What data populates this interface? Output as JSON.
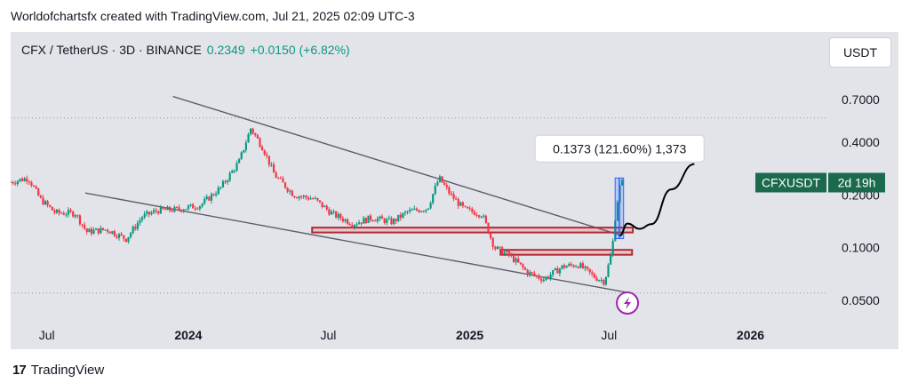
{
  "header": {
    "credit": "Worldofchartsfx created with TradingView.com, Jul 21, 2025 02:09 UTC-3"
  },
  "symbol": {
    "title": "CFX / TetherUS · 3D · BINANCE",
    "price": "0.2349",
    "change": "+0.0150 (+6.82%)"
  },
  "currency_button": "USDT",
  "ticker_tag": {
    "name": "CFXUSDT",
    "countdown": "2d 19h"
  },
  "measure_label": "0.1373 (121.60%) 1,373",
  "footer": {
    "brand": "TradingView"
  },
  "colors": {
    "up": "#089981",
    "down": "#f23645",
    "line": "#5d606b",
    "zone": "#b22833",
    "measure": "#2962ff",
    "panel": "#e3e4e9",
    "event": "#9c27b0"
  },
  "chart_data": {
    "type": "candlestick",
    "title": "CFX / TetherUS · 3D · BINANCE",
    "y_scale": "log",
    "y_ticks": [
      0.7,
      0.4,
      0.2,
      0.1,
      0.05
    ],
    "y_tick_labels": [
      "0.7000",
      "0.4000",
      "0.2000",
      "0.1000",
      "0.0500"
    ],
    "x_tick_labels": [
      "Jul",
      "2024",
      "Jul",
      "2025",
      "Jul",
      "2026"
    ],
    "x_tick_dates": [
      "2023-07-01",
      "2024-01-01",
      "2024-07-01",
      "2025-01-01",
      "2025-07-01",
      "2026-01-01"
    ],
    "x_range": [
      "2023-05-15",
      "2026-03-20"
    ],
    "y_range": [
      0.036,
      0.95
    ],
    "price_path": [
      [
        "2023-05-15",
        0.235
      ],
      [
        "2023-06-10",
        0.25
      ],
      [
        "2023-06-25",
        0.19
      ],
      [
        "2023-07-15",
        0.158
      ],
      [
        "2023-08-10",
        0.157
      ],
      [
        "2023-08-25",
        0.123
      ],
      [
        "2023-09-20",
        0.127
      ],
      [
        "2023-10-15",
        0.112
      ],
      [
        "2023-11-05",
        0.15
      ],
      [
        "2023-11-25",
        0.163
      ],
      [
        "2023-12-20",
        0.165
      ],
      [
        "2024-01-20",
        0.175
      ],
      [
        "2024-02-15",
        0.22
      ],
      [
        "2024-03-10",
        0.31
      ],
      [
        "2024-03-25",
        0.48
      ],
      [
        "2024-04-10",
        0.37
      ],
      [
        "2024-04-25",
        0.26
      ],
      [
        "2024-05-20",
        0.2
      ],
      [
        "2024-06-15",
        0.19
      ],
      [
        "2024-07-10",
        0.155
      ],
      [
        "2024-08-05",
        0.137
      ],
      [
        "2024-08-30",
        0.148
      ],
      [
        "2024-09-25",
        0.14
      ],
      [
        "2024-10-15",
        0.16
      ],
      [
        "2024-11-10",
        0.168
      ],
      [
        "2024-11-25",
        0.25
      ],
      [
        "2024-12-10",
        0.2
      ],
      [
        "2024-12-28",
        0.165
      ],
      [
        "2025-01-20",
        0.155
      ],
      [
        "2025-02-05",
        0.1
      ],
      [
        "2025-02-25",
        0.09
      ],
      [
        "2025-03-20",
        0.072
      ],
      [
        "2025-04-10",
        0.066
      ],
      [
        "2025-05-05",
        0.078
      ],
      [
        "2025-05-25",
        0.08
      ],
      [
        "2025-06-15",
        0.068
      ],
      [
        "2025-06-28",
        0.064
      ],
      [
        "2025-07-08",
        0.097
      ],
      [
        "2025-07-13",
        0.165
      ],
      [
        "2025-07-19",
        0.235
      ]
    ],
    "upper_trendline": [
      [
        "2023-12-12",
        0.73
      ],
      [
        "2025-07-15",
        0.118
      ]
    ],
    "lower_trendline": [
      [
        "2023-08-20",
        0.205
      ],
      [
        "2025-07-28",
        0.055
      ]
    ],
    "zones": [
      {
        "from": "2024-06-10",
        "to": "2025-08-01",
        "low": 0.122,
        "high": 0.13
      },
      {
        "from": "2025-02-10",
        "to": "2025-07-31",
        "low": 0.091,
        "high": 0.097
      }
    ],
    "projection": [
      [
        "2025-07-15",
        0.117
      ],
      [
        "2025-07-25",
        0.137
      ],
      [
        "2025-08-10",
        0.128
      ],
      [
        "2025-08-25",
        0.136
      ],
      [
        "2025-09-20",
        0.215
      ],
      [
        "2025-10-20",
        0.3
      ]
    ],
    "measure": {
      "from_date": "2025-07-09",
      "to_date": "2025-07-20",
      "from_price": 0.1125,
      "to_price": 0.2498
    }
  }
}
